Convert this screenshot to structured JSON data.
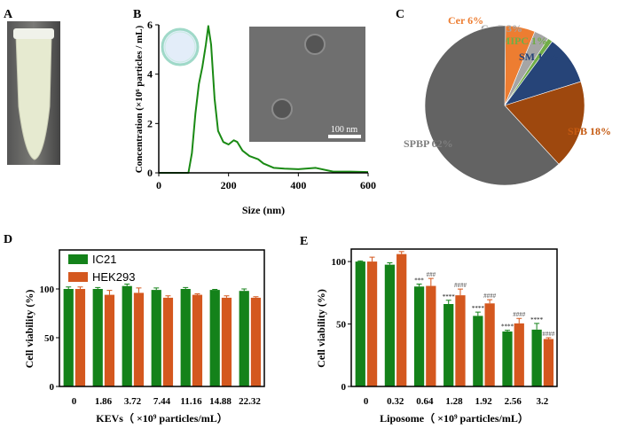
{
  "panels": {
    "a": "A",
    "b": "B",
    "c": "C",
    "d": "D",
    "e": "E"
  },
  "colors": {
    "green": "#14821a",
    "orange": "#d4581f",
    "line": "#1a8a14"
  },
  "chart_data": [
    {
      "type": "line",
      "panel": "B",
      "xlabel": "Size (nm)",
      "ylabel": "Concentration (×10⁶ particles / mL)",
      "xlim": [
        0,
        600
      ],
      "ylim": [
        0,
        6
      ],
      "xticks": [
        0,
        200,
        400,
        600
      ],
      "yticks": [
        0,
        2,
        4,
        6
      ],
      "x": [
        0,
        85,
        95,
        105,
        115,
        125,
        135,
        142,
        150,
        160,
        170,
        185,
        200,
        215,
        225,
        240,
        260,
        285,
        300,
        330,
        360,
        400,
        450,
        500,
        550,
        600
      ],
      "y": [
        0,
        0,
        0.8,
        2.4,
        3.6,
        4.3,
        5.2,
        5.95,
        5.2,
        3.0,
        1.7,
        1.25,
        1.15,
        1.32,
        1.25,
        0.9,
        0.68,
        0.55,
        0.38,
        0.2,
        0.17,
        0.15,
        0.2,
        0.05,
        0.05,
        0.03
      ],
      "inset_scale": "100 nm"
    },
    {
      "type": "pie",
      "panel": "C",
      "slices": [
        {
          "label": "Cer 6%",
          "value": 6,
          "color": "#ed7d31"
        },
        {
          "label": "CerP 3%",
          "value": 3,
          "color": "#a5a5a5"
        },
        {
          "label": "MIPC 1%",
          "value": 1,
          "color": "#70ad47"
        },
        {
          "label": "SM 10%",
          "value": 10,
          "color": "#264478"
        },
        {
          "label": "SPB 18%",
          "value": 18,
          "color": "#9e480e"
        },
        {
          "label": "SPBP  62%",
          "value": 62,
          "color": "#636363"
        }
      ]
    },
    {
      "type": "bar",
      "panel": "D",
      "xlabel": "KEVs（ ×10⁹ particles/mL）",
      "ylabel": "Cell viability (%)",
      "ylim": [
        0,
        140
      ],
      "yticks": [
        0,
        50,
        100
      ],
      "categories": [
        "0",
        "1.86",
        "3.72",
        "7.44",
        "11.16",
        "14.88",
        "22.32"
      ],
      "series": [
        {
          "name": "IC21",
          "values": [
            100,
            100,
            103,
            99,
            100,
            99,
            98
          ],
          "err": [
            2,
            1.5,
            2,
            2,
            1.5,
            0.5,
            2
          ]
        },
        {
          "name": "HEK293",
          "values": [
            100,
            94,
            96,
            91,
            94,
            91,
            91
          ],
          "err": [
            2,
            4.5,
            5,
            2,
            1,
            2,
            1
          ]
        }
      ],
      "legend": "top-left"
    },
    {
      "type": "bar",
      "panel": "E",
      "xlabel": "Liposome（ ×10⁹ particles/mL）",
      "ylabel": "Cell viability (%)",
      "ylim": [
        0,
        110
      ],
      "yticks": [
        0,
        50,
        100
      ],
      "categories": [
        "0",
        "0.32",
        "0.64",
        "1.28",
        "1.92",
        "2.56",
        "3.2"
      ],
      "series": [
        {
          "name": "IC21",
          "values": [
            100,
            97.5,
            80,
            66,
            56.5,
            44,
            45.5
          ],
          "err": [
            0.5,
            1.5,
            2,
            3,
            3,
            1,
            5
          ],
          "sig": [
            "",
            "",
            "***",
            "****",
            "****",
            "****",
            "****"
          ]
        },
        {
          "name": "HEK293",
          "values": [
            100,
            106,
            80.5,
            73,
            66.5,
            50.5,
            38
          ],
          "err": [
            3.5,
            2,
            6,
            5,
            3,
            4,
            1
          ],
          "sig": [
            "",
            "",
            "###",
            "####",
            "####",
            "####",
            "####"
          ]
        }
      ]
    }
  ]
}
